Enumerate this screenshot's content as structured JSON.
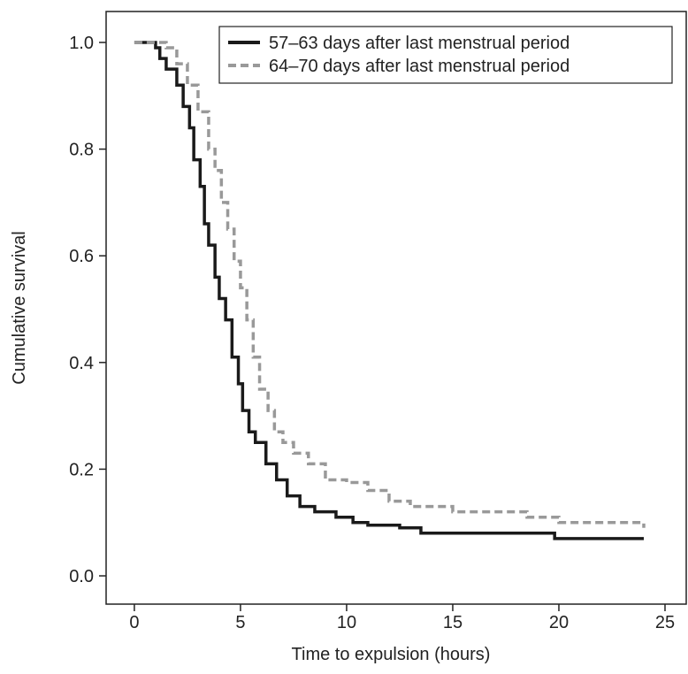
{
  "chart_data": {
    "type": "line",
    "step": true,
    "xlabel": "Time to expulsion (hours)",
    "ylabel": "Cumulative survival",
    "xlim": [
      -1.33,
      26
    ],
    "ylim": [
      -0.053,
      1.058
    ],
    "xticks": [
      0,
      5,
      10,
      15,
      20,
      25
    ],
    "yticks": [
      {
        "value": 0,
        "label": "0.0"
      },
      0.2,
      0.4,
      0.6,
      0.8,
      {
        "value": 1,
        "label": "1.0"
      }
    ],
    "legend_position": "upper right",
    "series": [
      {
        "name": "57–63 days after last menstrual period",
        "color": "#1a1a1a",
        "dash": "solid",
        "x": [
          0,
          1,
          1.2,
          1.5,
          2,
          2.3,
          2.6,
          2.8,
          3.1,
          3.3,
          3.5,
          3.8,
          4,
          4.3,
          4.6,
          4.9,
          5.1,
          5.4,
          5.7,
          6.2,
          6.7,
          7.2,
          7.8,
          8.5,
          9.5,
          10.3,
          11,
          12.5,
          13.5,
          19.8,
          24
        ],
        "values": [
          1.0,
          0.99,
          0.97,
          0.95,
          0.92,
          0.88,
          0.84,
          0.78,
          0.73,
          0.66,
          0.62,
          0.56,
          0.52,
          0.48,
          0.41,
          0.36,
          0.31,
          0.27,
          0.25,
          0.21,
          0.18,
          0.15,
          0.13,
          0.12,
          0.11,
          0.1,
          0.095,
          0.09,
          0.08,
          0.07,
          0.07
        ]
      },
      {
        "name": "64–70 days after last menstrual period",
        "color": "#999999",
        "dash": "dashed",
        "x": [
          0,
          1.5,
          2,
          2.5,
          3,
          3.5,
          3.8,
          4.1,
          4.4,
          4.7,
          5,
          5.3,
          5.6,
          5.9,
          6.3,
          6.6,
          7,
          7.5,
          8.2,
          9,
          10,
          11,
          12,
          13,
          15,
          18.5,
          20,
          24
        ],
        "values": [
          1.0,
          0.99,
          0.96,
          0.92,
          0.87,
          0.8,
          0.76,
          0.7,
          0.65,
          0.59,
          0.54,
          0.48,
          0.41,
          0.35,
          0.31,
          0.27,
          0.25,
          0.23,
          0.21,
          0.18,
          0.175,
          0.16,
          0.14,
          0.13,
          0.12,
          0.11,
          0.1,
          0.09
        ]
      }
    ]
  }
}
